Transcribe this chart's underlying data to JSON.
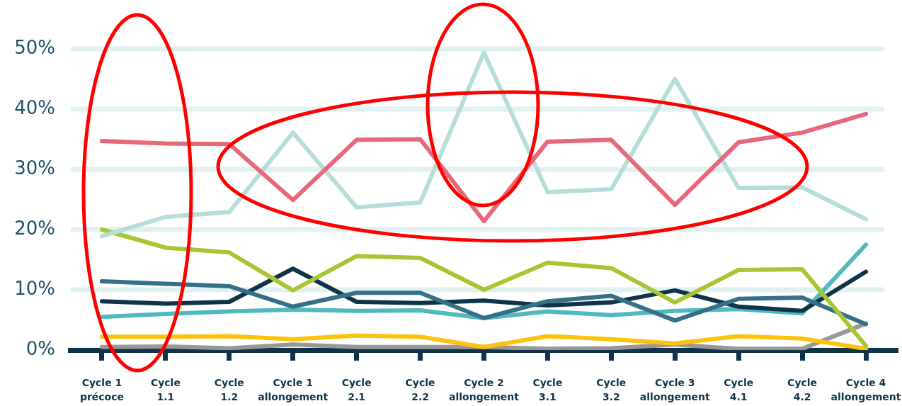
{
  "chart_data": {
    "type": "line",
    "categories": [
      "Cycle 1 précoce",
      "Cycle 1.1",
      "Cycle 1.2",
      "Cycle 1 allongement",
      "Cycle 2.1",
      "Cycle 2.2",
      "Cycle 2 allongement",
      "Cycle 3.1",
      "Cycle 3.2",
      "Cycle 3 allongement",
      "Cycle 4.1",
      "Cycle 4.2",
      "Cycle 4 allongement"
    ],
    "series": [
      {
        "color": "#e8687a",
        "values": [
          34.7,
          34.3,
          34.2,
          24.9,
          34.9,
          35.0,
          21.4,
          34.6,
          34.9,
          24.1,
          34.5,
          36.1,
          39.2
        ]
      },
      {
        "color": "#b5ddd9",
        "values": [
          18.9,
          22.1,
          22.9,
          36.1,
          23.7,
          24.5,
          49.4,
          26.2,
          26.7,
          45.0,
          26.9,
          27.0,
          21.7
        ]
      },
      {
        "color": "#a8c634",
        "values": [
          20.0,
          17.0,
          16.2,
          9.9,
          15.6,
          15.3,
          10.0,
          14.5,
          13.6,
          7.9,
          13.3,
          13.4,
          0.7
        ]
      },
      {
        "color": "#357087",
        "values": [
          11.4,
          11.0,
          10.6,
          7.2,
          9.5,
          9.5,
          5.3,
          8.1,
          9.0,
          4.9,
          8.5,
          8.7,
          4.3
        ]
      },
      {
        "color": "#0e3449",
        "values": [
          8.1,
          7.7,
          8.0,
          13.5,
          8.0,
          7.8,
          8.2,
          7.4,
          7.9,
          9.9,
          7.2,
          6.5,
          13.0
        ]
      },
      {
        "color": "#50b9bf",
        "values": [
          5.5,
          6.0,
          6.4,
          6.7,
          6.5,
          6.6,
          5.3,
          6.4,
          5.8,
          6.5,
          6.8,
          6.1,
          17.5
        ]
      },
      {
        "color": "#fcc30e",
        "values": [
          2.2,
          2.2,
          2.3,
          1.8,
          2.4,
          2.2,
          0.5,
          2.3,
          1.8,
          1.1,
          2.3,
          1.9,
          0.2
        ]
      },
      {
        "color": "#999897",
        "values": [
          0.5,
          0.6,
          0.3,
          0.9,
          0.5,
          0.5,
          0.5,
          0.2,
          0.3,
          0.9,
          0.2,
          0.2,
          4.4
        ]
      }
    ],
    "ylim": [
      0,
      50
    ],
    "yticks": [
      {
        "value": 0,
        "label": "0%"
      },
      {
        "value": 10,
        "label": "10%"
      },
      {
        "value": 20,
        "label": "20%"
      },
      {
        "value": 30,
        "label": "30%"
      },
      {
        "value": 40,
        "label": "40%"
      },
      {
        "value": 50,
        "label": "50%"
      }
    ],
    "grid": "y"
  }
}
